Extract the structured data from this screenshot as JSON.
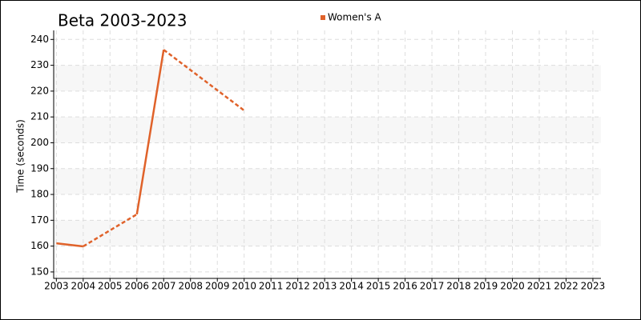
{
  "chart_data": {
    "type": "line",
    "title": "Beta 2003-2023",
    "y_label": "Time (seconds)",
    "x": [
      2003,
      2004,
      2005,
      2006,
      2007,
      2008,
      2009,
      2010
    ],
    "series": [
      {
        "name": "Women's A",
        "color": "#e0622a",
        "values": [
          161.1,
          159.9,
          null,
          172.3,
          236.0,
          null,
          null,
          212.5
        ]
      }
    ],
    "xlim": [
      2002.9,
      2023.3
    ],
    "xticks": [
      2003,
      2004,
      2005,
      2006,
      2007,
      2008,
      2009,
      2010,
      2011,
      2012,
      2013,
      2014,
      2015,
      2016,
      2017,
      2018,
      2019,
      2020,
      2021,
      2022,
      2023
    ],
    "ylim": [
      147.5,
      243.5
    ],
    "yticks": [
      150,
      160,
      170,
      180,
      190,
      200,
      210,
      220,
      230,
      240
    ],
    "grid": true,
    "legend": "top",
    "bridge_gaps": "dashed"
  }
}
